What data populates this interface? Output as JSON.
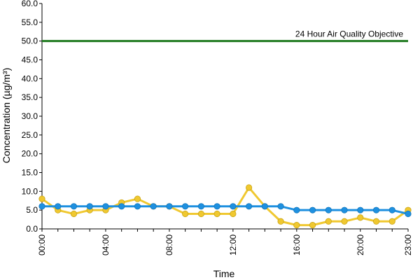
{
  "chart_data": {
    "type": "line",
    "title": "",
    "xlabel": "Time",
    "ylabel": "Concentration (µg/m³)",
    "ylim": [
      0,
      60
    ],
    "y_ticks": [
      "0.0",
      "5.0",
      "10.0",
      "15.0",
      "20.0",
      "25.0",
      "30.0",
      "35.0",
      "40.0",
      "45.0",
      "50.0",
      "55.0",
      "60.0"
    ],
    "x_ticks": [
      "00:00",
      "04:00",
      "08:00",
      "12:00",
      "16:00",
      "20:00",
      "23:00"
    ],
    "grid": false,
    "legend": "none",
    "x_hours": [
      0,
      1,
      2,
      3,
      4,
      5,
      6,
      7,
      8,
      9,
      10,
      11,
      12,
      13,
      14,
      15,
      16,
      17,
      18,
      19,
      20,
      21,
      22,
      23
    ],
    "series": [
      {
        "color": "#f0c830",
        "values": [
          8,
          5,
          4,
          5,
          5,
          7,
          8,
          6,
          6,
          4,
          4,
          4,
          4,
          11,
          6,
          2,
          1,
          1,
          2,
          2,
          3,
          2,
          2,
          5
        ]
      },
      {
        "color": "#1e90e0",
        "values": [
          6,
          6,
          6,
          6,
          6,
          6,
          6,
          6,
          6,
          6,
          6,
          6,
          6,
          6,
          6,
          6,
          5,
          5,
          5,
          5,
          5,
          5,
          5,
          4
        ]
      }
    ],
    "reference_line": {
      "value": 50,
      "label": "24 Hour Air Quality Objective",
      "color": "#1f7a1f"
    }
  }
}
